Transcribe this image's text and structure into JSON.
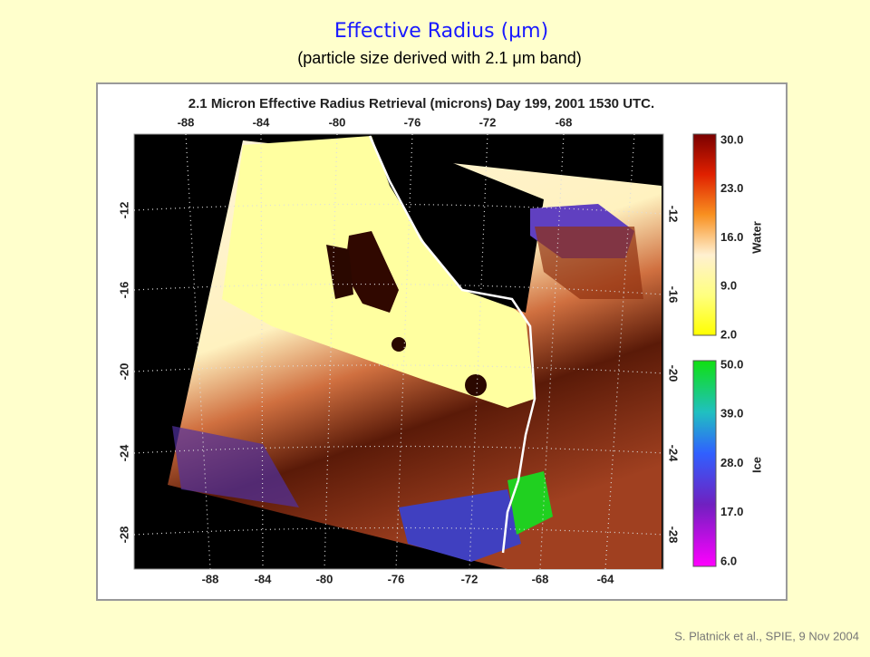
{
  "slide": {
    "title": "Effective Radius (μm)",
    "subtitle": "(particle size derived with 2.1 μm band)",
    "citation": "S. Platnick et al., SPIE, 9 Nov  2004"
  },
  "figure": {
    "title": "2.1 Micron Effective Radius Retrieval (microns)   Day 199, 2001 1530 UTC.",
    "lon_top": [
      "-88",
      "-84",
      "-80",
      "-76",
      "-72",
      "-68"
    ],
    "lon_bottom": [
      "-88",
      "-84",
      "-80",
      "-76",
      "-72",
      "-68",
      "-64"
    ],
    "lat_left": [
      "-12",
      "-16",
      "-20",
      "-24",
      "-28"
    ],
    "lat_right": [
      "-12",
      "-16",
      "-20",
      "-24",
      "-28"
    ],
    "colorbars": [
      {
        "label": "Water",
        "ticks": [
          "30.0",
          "23.0",
          "16.0",
          "9.0",
          "2.0"
        ]
      },
      {
        "label": "Ice",
        "ticks": [
          "50.0",
          "39.0",
          "28.0",
          "17.0",
          "6.0"
        ]
      }
    ]
  }
}
